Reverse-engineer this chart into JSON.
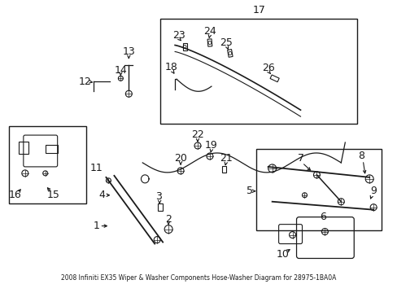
{
  "bg": "#ffffff",
  "lc": "#1a1a1a",
  "fs": 8.5,
  "title1": "2008 Infiniti EX35 Wiper & Washer Components Hose-Washer Diagram for 28975-1BA0A"
}
